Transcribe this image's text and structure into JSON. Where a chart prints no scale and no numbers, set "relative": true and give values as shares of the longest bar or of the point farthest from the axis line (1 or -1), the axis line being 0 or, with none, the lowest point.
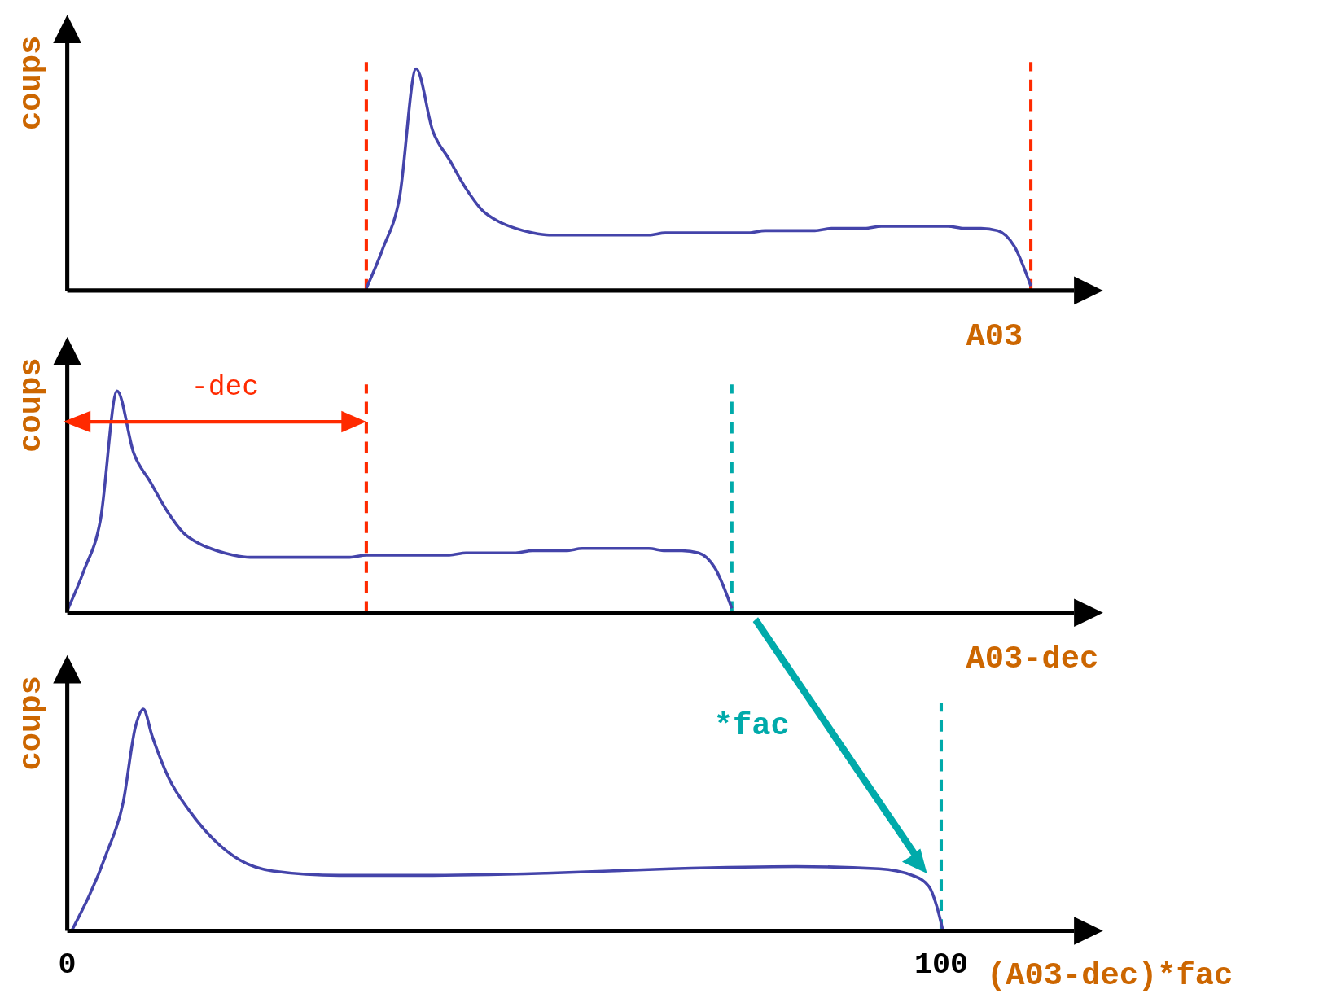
{
  "chart_data": [
    {
      "type": "line",
      "relative": true,
      "xlabel": "A03",
      "ylabel": "coups",
      "tick_labels": false,
      "categories": [
        null,
        null,
        null,
        null,
        null,
        null,
        null,
        null,
        null,
        null,
        null,
        null,
        null,
        null,
        null,
        null,
        null,
        null,
        null,
        null,
        null,
        null,
        null,
        null,
        null,
        null,
        null,
        null,
        null,
        null,
        null,
        null,
        null,
        null,
        null,
        null,
        null,
        null,
        null,
        null,
        null,
        null,
        null,
        null,
        null,
        null,
        null,
        null,
        null,
        null,
        null,
        null,
        null,
        null,
        null,
        null,
        null,
        null,
        null,
        null,
        null,
        null,
        null
      ],
      "series": [
        {
          "color": "#4444aa",
          "values": [
            null,
            null,
            null,
            null,
            null,
            null,
            null,
            null,
            null,
            null,
            null,
            null,
            null,
            null,
            null,
            null,
            null,
            null,
            0.01,
            0.19,
            0.42,
            1.0,
            0.72,
            0.59,
            0.46,
            0.36,
            0.31,
            0.28,
            0.26,
            0.25,
            0.25,
            0.25,
            0.25,
            0.25,
            0.25,
            0.25,
            0.26,
            0.26,
            0.26,
            0.26,
            0.26,
            0.26,
            0.27,
            0.27,
            0.27,
            0.27,
            0.28,
            0.28,
            0.28,
            0.29,
            0.29,
            0.29,
            0.29,
            0.29,
            0.28,
            0.28,
            0.27,
            0.2,
            0.02,
            null,
            null,
            null,
            null
          ]
        }
      ]
    },
    {
      "type": "line",
      "relative": true,
      "xlabel": "A03-dec",
      "ylabel": "coups",
      "tick_labels": false,
      "annotations": [
        "-dec"
      ],
      "categories": [
        null,
        null,
        null,
        null,
        null,
        null,
        null,
        null,
        null,
        null,
        null,
        null,
        null,
        null,
        null,
        null,
        null,
        null,
        null,
        null,
        null,
        null,
        null,
        null,
        null,
        null,
        null,
        null,
        null,
        null,
        null,
        null,
        null,
        null,
        null,
        null,
        null,
        null,
        null,
        null,
        null,
        null,
        null,
        null,
        null,
        null,
        null,
        null,
        null,
        null,
        null,
        null,
        null,
        null,
        null,
        null,
        null,
        null,
        null,
        null,
        null,
        null,
        null
      ],
      "series": [
        {
          "color": "#4444aa",
          "values": [
            0.01,
            0.19,
            0.42,
            1.0,
            0.72,
            0.59,
            0.46,
            0.36,
            0.31,
            0.28,
            0.26,
            0.25,
            0.25,
            0.25,
            0.25,
            0.25,
            0.25,
            0.25,
            0.26,
            0.26,
            0.26,
            0.26,
            0.26,
            0.26,
            0.27,
            0.27,
            0.27,
            0.27,
            0.28,
            0.28,
            0.28,
            0.29,
            0.29,
            0.29,
            0.29,
            0.29,
            0.28,
            0.28,
            0.27,
            0.2,
            0.02,
            null,
            null,
            null,
            null,
            null,
            null,
            null,
            null,
            null,
            null,
            null,
            null,
            null,
            null,
            null,
            null,
            null,
            null,
            null,
            null,
            null,
            null
          ]
        }
      ]
    },
    {
      "type": "line",
      "relative": true,
      "xlabel": "(A03-dec)*fac",
      "ylabel": "coups",
      "tick_labels": "x",
      "annotations": [
        "*fac"
      ],
      "xlim": [
        0,
        115.2
      ],
      "xticks": [
        0,
        100
      ],
      "series": [
        {
          "color": "#4444aa",
          "x": [
            0.5,
            4.5,
            6.4,
            7.8,
            8.7,
            9.7,
            11.6,
            14.0,
            16.8,
            19.7,
            23.5,
            31.1,
            40.6,
            54.8,
            69.1,
            83.4,
            92.9,
            96.7,
            98.6,
            99.5,
            100.2
          ],
          "values": [
            0,
            0.35,
            0.58,
            0.92,
            1.0,
            0.88,
            0.69,
            0.54,
            0.41,
            0.32,
            0.27,
            0.25,
            0.25,
            0.26,
            0.28,
            0.29,
            0.28,
            0.25,
            0.2,
            0.11,
            0
          ]
        }
      ],
      "ref_lines": [
        {
          "axis": "x",
          "value": 100,
          "color": "#00aaaa",
          "line_style": "dashed"
        }
      ]
    }
  ]
}
